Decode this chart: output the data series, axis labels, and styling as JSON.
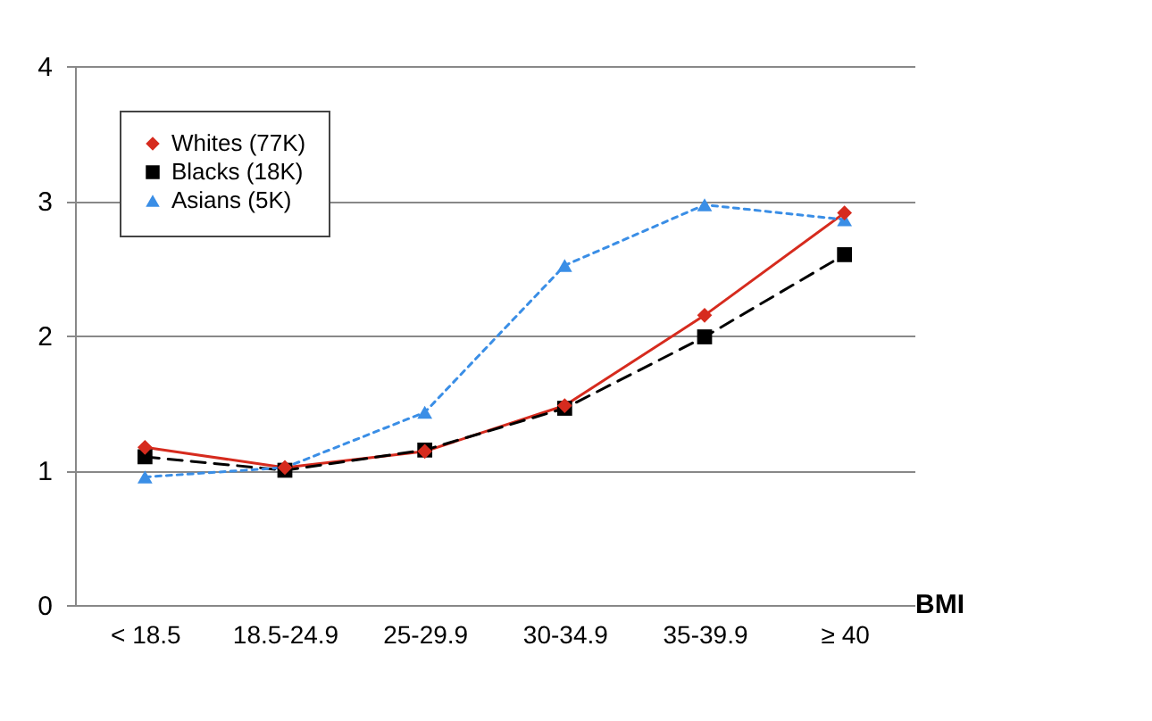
{
  "chart_data": {
    "type": "line",
    "xlabel": "BMI",
    "categories": [
      "< 18.5",
      "18.5-24.9",
      "25-29.9",
      "30-34.9",
      "35-39.9",
      "≥ 40"
    ],
    "series": [
      {
        "name": "Whites (77K)",
        "color": "#d62b1e",
        "marker": "diamond",
        "line_style": "solid",
        "values": [
          1.17,
          1.02,
          1.14,
          1.48,
          2.15,
          2.91
        ]
      },
      {
        "name": "Blacks (18K)",
        "color": "#000000",
        "marker": "square",
        "line_style": "dashed",
        "values": [
          1.1,
          1.0,
          1.15,
          1.46,
          1.99,
          2.6
        ]
      },
      {
        "name": "Asians (5K)",
        "color": "#3a8ee6",
        "marker": "triangle",
        "line_style": "dotted",
        "values": [
          0.95,
          1.02,
          1.43,
          2.52,
          2.97,
          2.86
        ]
      }
    ],
    "ylim": [
      0,
      4
    ],
    "yticks": [
      0,
      1,
      2,
      3,
      4
    ],
    "grid": "y",
    "legend": "top left"
  }
}
